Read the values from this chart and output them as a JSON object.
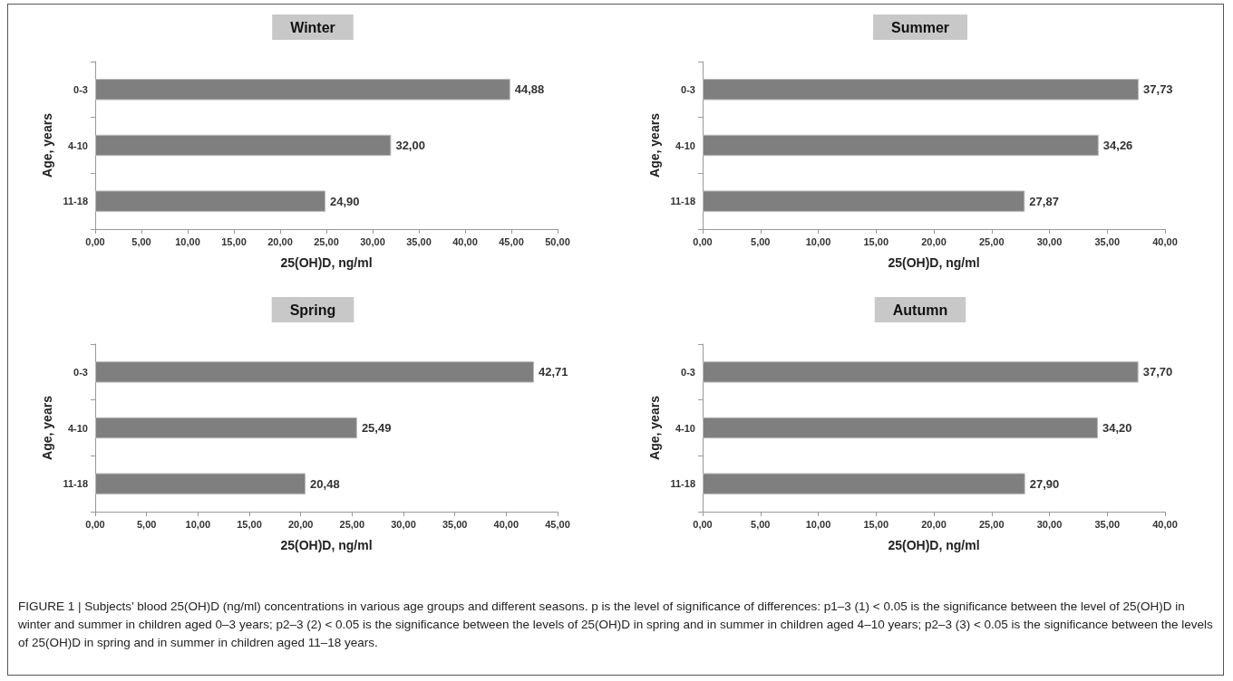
{
  "chart_data": [
    {
      "type": "bar",
      "orientation": "horizontal",
      "title": "Winter",
      "xlabel": "25(OH)D, ng/ml",
      "ylabel": "Age, years",
      "categories": [
        "0-3",
        "4-10",
        "11-18"
      ],
      "values": [
        44.88,
        32.0,
        24.9
      ],
      "value_labels": [
        "44,88",
        "32,00",
        "24,90"
      ],
      "color": "#7f7f7f",
      "xlim": [
        0,
        50
      ],
      "xticks": [
        {
          "value": 0,
          "label": "0,00"
        },
        {
          "value": 5,
          "label": "5,00"
        },
        {
          "value": 10,
          "label": "10,00"
        },
        {
          "value": 15,
          "label": "15,00"
        },
        {
          "value": 20,
          "label": "20,00"
        },
        {
          "value": 25,
          "label": "25,00"
        },
        {
          "value": 30,
          "label": "30,00"
        },
        {
          "value": 35,
          "label": "35,00"
        },
        {
          "value": 40,
          "label": "40,00"
        },
        {
          "value": 45,
          "label": "45,00"
        },
        {
          "value": 50,
          "label": "50,00"
        }
      ]
    },
    {
      "type": "bar",
      "orientation": "horizontal",
      "title": "Summer",
      "xlabel": "25(OH)D, ng/ml",
      "ylabel": "Age, years",
      "categories": [
        "0-3",
        "4-10",
        "11-18"
      ],
      "values": [
        37.73,
        34.26,
        27.87
      ],
      "value_labels": [
        "37,73",
        "34,26",
        "27,87"
      ],
      "color": "#7f7f7f",
      "xlim": [
        0,
        40
      ],
      "xticks": [
        {
          "value": 0,
          "label": "0,00"
        },
        {
          "value": 5,
          "label": "5,00"
        },
        {
          "value": 10,
          "label": "10,00"
        },
        {
          "value": 15,
          "label": "15,00"
        },
        {
          "value": 20,
          "label": "20,00"
        },
        {
          "value": 25,
          "label": "25,00"
        },
        {
          "value": 30,
          "label": "30,00"
        },
        {
          "value": 35,
          "label": "35,00"
        },
        {
          "value": 40,
          "label": "40,00"
        }
      ]
    },
    {
      "type": "bar",
      "orientation": "horizontal",
      "title": "Spring",
      "xlabel": "25(OH)D, ng/ml",
      "ylabel": "Age, years",
      "categories": [
        "0-3",
        "4-10",
        "11-18"
      ],
      "values": [
        42.71,
        25.49,
        20.48
      ],
      "value_labels": [
        "42,71",
        "25,49",
        "20,48"
      ],
      "color": "#7f7f7f",
      "xlim": [
        0,
        45
      ],
      "xticks": [
        {
          "value": 0,
          "label": "0,00"
        },
        {
          "value": 5,
          "label": "5,00"
        },
        {
          "value": 10,
          "label": "10,00"
        },
        {
          "value": 15,
          "label": "15,00"
        },
        {
          "value": 20,
          "label": "20,00"
        },
        {
          "value": 25,
          "label": "25,00"
        },
        {
          "value": 30,
          "label": "30,00"
        },
        {
          "value": 35,
          "label": "35,00"
        },
        {
          "value": 40,
          "label": "40,00"
        },
        {
          "value": 45,
          "label": "45,00"
        }
      ]
    },
    {
      "type": "bar",
      "orientation": "horizontal",
      "title": "Autumn",
      "xlabel": "25(OH)D, ng/ml",
      "ylabel": "Age, years",
      "categories": [
        "0-3",
        "4-10",
        "11-18"
      ],
      "values": [
        37.7,
        34.2,
        27.9
      ],
      "value_labels": [
        "37,70",
        "34,20",
        "27,90"
      ],
      "color": "#7f7f7f",
      "xlim": [
        0,
        40
      ],
      "xticks": [
        {
          "value": 0,
          "label": "0,00"
        },
        {
          "value": 5,
          "label": "5,00"
        },
        {
          "value": 10,
          "label": "10,00"
        },
        {
          "value": 15,
          "label": "15,00"
        },
        {
          "value": 20,
          "label": "20,00"
        },
        {
          "value": 25,
          "label": "25,00"
        },
        {
          "value": 30,
          "label": "30,00"
        },
        {
          "value": 35,
          "label": "35,00"
        },
        {
          "value": 40,
          "label": "40,00"
        }
      ]
    },
    {
      "type": "other",
      "annotations": [
        "FIGURE 1 | Subjects’ blood 25(OH)D (ng/ml) concentrations in various age groups and different seasons. p is the level of significance of differences: p1–3 (1) < 0.05 is the significance between the level of 25(OH)D in winter and summer in children aged 0–3 years; p2–3 (2) < 0.05 is the significance between the levels of 25(OH)D in spring and in summer in children aged 4–10 years; p2–3 (3) < 0.05 is the significance between the levels of 25(OH)D in spring and in summer in children aged 11–18 years."
      ]
    }
  ]
}
